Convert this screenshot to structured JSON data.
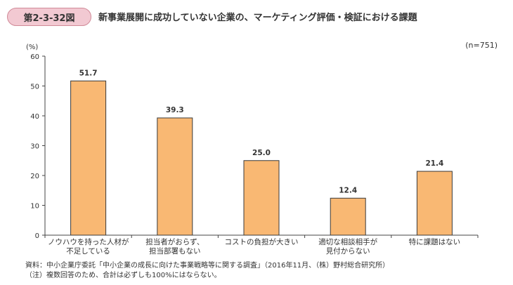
{
  "figure": {
    "badge": "第2-3-32図",
    "title": "新事業展開に成功していない企業の、マーケティング評価・検証における課題",
    "sample_size": "(n=751)"
  },
  "notes": {
    "source": "資料：中小企業庁委託「中小企業の成長に向けた事業戦略等に関する調査」（2016年11月、（株）野村総合研究所）",
    "note": "（注）複数回答のため、合計は必ずしも100%にはならない。"
  },
  "colors": {
    "bar_fill": "#f9b873",
    "bar_stroke": "#3a3a3a",
    "badge_fill": "#f2c9d2",
    "badge_border": "#d08a98"
  },
  "chart_data": {
    "type": "bar",
    "title": "新事業展開に成功していない企業の、マーケティング評価・検証における課題",
    "categories": [
      "ノウハウを持った人材が\n不足している",
      "担当者がおらず、\n担当部署もない",
      "コストの負担が大きい",
      "適切な相談相手が\n見付からない",
      "特に課題はない"
    ],
    "values": [
      51.7,
      39.3,
      25.0,
      12.4,
      21.4
    ],
    "value_labels": [
      "51.7",
      "39.3",
      "25.0",
      "12.4",
      "21.4"
    ],
    "ylabel": "(%)",
    "ylim": [
      0,
      60
    ],
    "yticks": [
      0,
      10,
      20,
      30,
      40,
      50,
      60
    ],
    "grid": false,
    "legend": "none"
  }
}
